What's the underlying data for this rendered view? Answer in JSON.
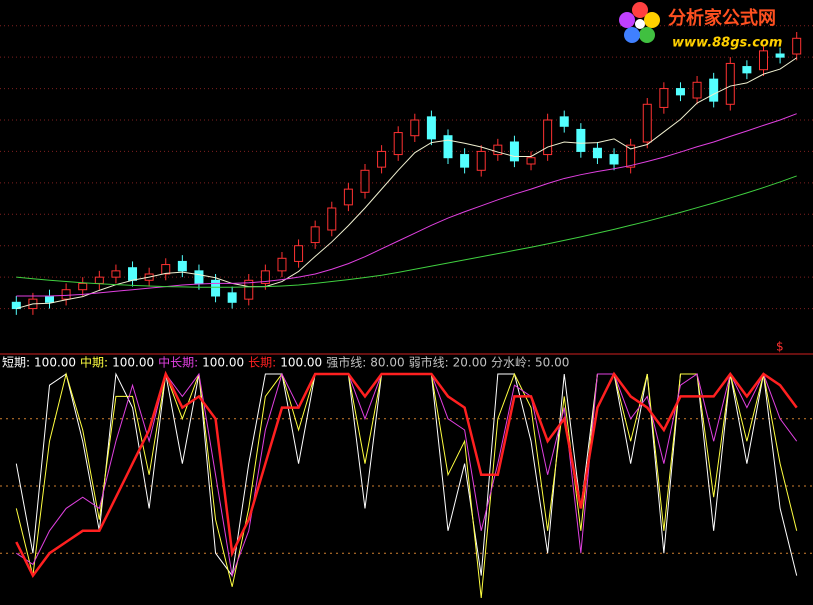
{
  "chart_data": [
    {
      "type": "candlestick",
      "open": [
        12,
        10,
        14,
        13,
        16,
        18,
        20,
        23,
        19,
        21,
        25,
        22,
        19,
        15,
        13,
        18,
        22,
        25,
        31,
        35,
        43,
        47,
        55,
        59,
        65,
        71,
        65,
        59,
        54,
        59,
        63,
        56,
        59,
        71,
        67,
        61,
        59,
        55,
        63,
        74,
        80,
        77,
        83,
        75,
        87,
        86,
        91,
        91
      ],
      "high": [
        14,
        15,
        16,
        18,
        20,
        22,
        24,
        25,
        23,
        26,
        27,
        24,
        21,
        17,
        21,
        24,
        28,
        32,
        38,
        44,
        50,
        56,
        62,
        68,
        72,
        73,
        67,
        61,
        62,
        64,
        65,
        60,
        72,
        73,
        69,
        63,
        61,
        64,
        77,
        82,
        82,
        84,
        85,
        90,
        89,
        94,
        93,
        98
      ],
      "low": [
        8,
        8,
        10,
        11,
        14,
        16,
        18,
        17,
        17,
        19,
        20,
        16,
        12,
        10,
        11,
        16,
        20,
        23,
        29,
        33,
        41,
        45,
        53,
        57,
        63,
        62,
        56,
        53,
        52,
        57,
        55,
        54,
        57,
        66,
        58,
        56,
        54,
        53,
        61,
        72,
        76,
        75,
        74,
        73,
        83,
        84,
        88,
        89
      ],
      "close": [
        10,
        13,
        12,
        16,
        18,
        20,
        22,
        19,
        21,
        24,
        22,
        18,
        14,
        12,
        19,
        22,
        26,
        30,
        36,
        42,
        48,
        54,
        60,
        66,
        70,
        64,
        58,
        55,
        60,
        62,
        57,
        58,
        70,
        68,
        60,
        58,
        56,
        62,
        75,
        80,
        78,
        82,
        76,
        88,
        85,
        92,
        90,
        96
      ],
      "up_color": "#ff3232",
      "down_color": "#54ffff",
      "lines": [
        {
          "color": "#f0f0d0",
          "values": [
            10,
            11.5,
            11.7,
            12.8,
            13.8,
            15.8,
            17.6,
            19,
            20,
            21.2,
            21.6,
            20.8,
            19.8,
            18,
            17,
            17,
            18.6,
            21.8,
            26.6,
            31.2,
            36.4,
            42,
            48,
            54,
            59.6,
            62.8,
            63.6,
            62.6,
            61.4,
            59.8,
            58.4,
            58.4,
            61.4,
            63,
            62.6,
            62.8,
            64,
            60.8,
            62.2,
            66.2,
            70.2,
            75.4,
            78.2,
            80.8,
            81.8,
            84.6,
            86.2,
            89.8
          ]
        },
        {
          "color": "#e040e0",
          "values": [
            14,
            14,
            14,
            14.2,
            14.5,
            15,
            15.5,
            16,
            16.5,
            17,
            17.5,
            17.8,
            18,
            18,
            18.2,
            18.6,
            19.2,
            20,
            21,
            22.5,
            24.3,
            26.5,
            29,
            31.5,
            34,
            36.5,
            38.8,
            40.8,
            42.7,
            44.6,
            46.4,
            48,
            49.8,
            51.4,
            52.6,
            53.6,
            54.5,
            55.5,
            56.8,
            58.2,
            59.8,
            61.5,
            63,
            64.8,
            66.5,
            68.3,
            70,
            72
          ]
        },
        {
          "color": "#40d040",
          "values": [
            20,
            19.5,
            19,
            18.6,
            18.2,
            17.9,
            17.6,
            17.4,
            17.2,
            17,
            16.9,
            16.8,
            16.8,
            16.8,
            16.9,
            17,
            17.2,
            17.5,
            18,
            18.6,
            19.2,
            19.9,
            20.6,
            21.5,
            22.5,
            23.5,
            24.5,
            25.5,
            26.5,
            27.5,
            28.5,
            29.5,
            30.6,
            31.7,
            32.8,
            34,
            35.2,
            36.5,
            37.8,
            39.2,
            40.6,
            42.1,
            43.6,
            45.2,
            46.8,
            48.5,
            50.3,
            52.2
          ]
        }
      ],
      "ylim": [
        0,
        105
      ],
      "yticks": [
        10,
        20,
        30,
        40,
        50,
        60,
        70,
        80,
        90,
        100
      ],
      "grid": true,
      "marker": "$"
    },
    {
      "type": "line",
      "ylim": [
        0,
        100
      ],
      "series": [
        {
          "name": "短期:",
          "color": "#ffffff",
          "current": {
            "value": 100,
            "label": "100.00"
          },
          "values": [
            60,
            20,
            95,
            100,
            70,
            30,
            100,
            85,
            40,
            100,
            60,
            100,
            20,
            10,
            60,
            100,
            100,
            60,
            100,
            100,
            100,
            40,
            100,
            100,
            100,
            100,
            30,
            60,
            10,
            100,
            100,
            70,
            20,
            100,
            40,
            100,
            100,
            60,
            100,
            20,
            100,
            100,
            30,
            100,
            60,
            100,
            40,
            10
          ]
        },
        {
          "name": "中期:",
          "color": "#ffff40",
          "current": {
            "value": 100,
            "label": "100.00"
          },
          "values": [
            40,
            10,
            70,
            100,
            75,
            35,
            90,
            90,
            55,
            100,
            80,
            100,
            35,
            5,
            40,
            90,
            100,
            75,
            100,
            100,
            100,
            60,
            100,
            100,
            100,
            100,
            55,
            70,
            0,
            80,
            100,
            85,
            30,
            90,
            30,
            100,
            100,
            70,
            100,
            30,
            100,
            100,
            45,
            100,
            70,
            100,
            60,
            30
          ]
        },
        {
          "name": "中长期:",
          "color": "#e040e0",
          "current": {
            "value": 100,
            "label": "100.00"
          },
          "values": [
            20,
            15,
            30,
            40,
            45,
            40,
            70,
            95,
            70,
            100,
            90,
            100,
            55,
            10,
            30,
            75,
            100,
            85,
            100,
            100,
            100,
            80,
            100,
            100,
            100,
            100,
            80,
            75,
            30,
            60,
            95,
            90,
            55,
            85,
            20,
            100,
            100,
            80,
            90,
            60,
            95,
            100,
            70,
            100,
            85,
            100,
            80,
            70
          ]
        },
        {
          "name": "长期:",
          "color": "#ff2020",
          "current": {
            "value": 100,
            "label": "100.00"
          },
          "values": [
            25,
            10,
            20,
            25,
            30,
            30,
            45,
            60,
            75,
            100,
            85,
            90,
            80,
            20,
            35,
            60,
            85,
            85,
            100,
            100,
            100,
            90,
            100,
            100,
            100,
            100,
            90,
            85,
            55,
            55,
            90,
            90,
            70,
            80,
            40,
            85,
            100,
            90,
            85,
            75,
            90,
            90,
            90,
            100,
            90,
            100,
            95,
            85
          ]
        }
      ],
      "levels": [
        {
          "name": "强市线:",
          "value": 80,
          "label": "80.00"
        },
        {
          "name": "弱市线:",
          "value": 20,
          "label": "20.00"
        },
        {
          "name": "分水岭:",
          "value": 50,
          "label": "50.00"
        }
      ],
      "level_color": "#c0c0c0"
    }
  ],
  "watermark": {
    "name": "分析家公式网",
    "url": "www.88gs.com"
  }
}
